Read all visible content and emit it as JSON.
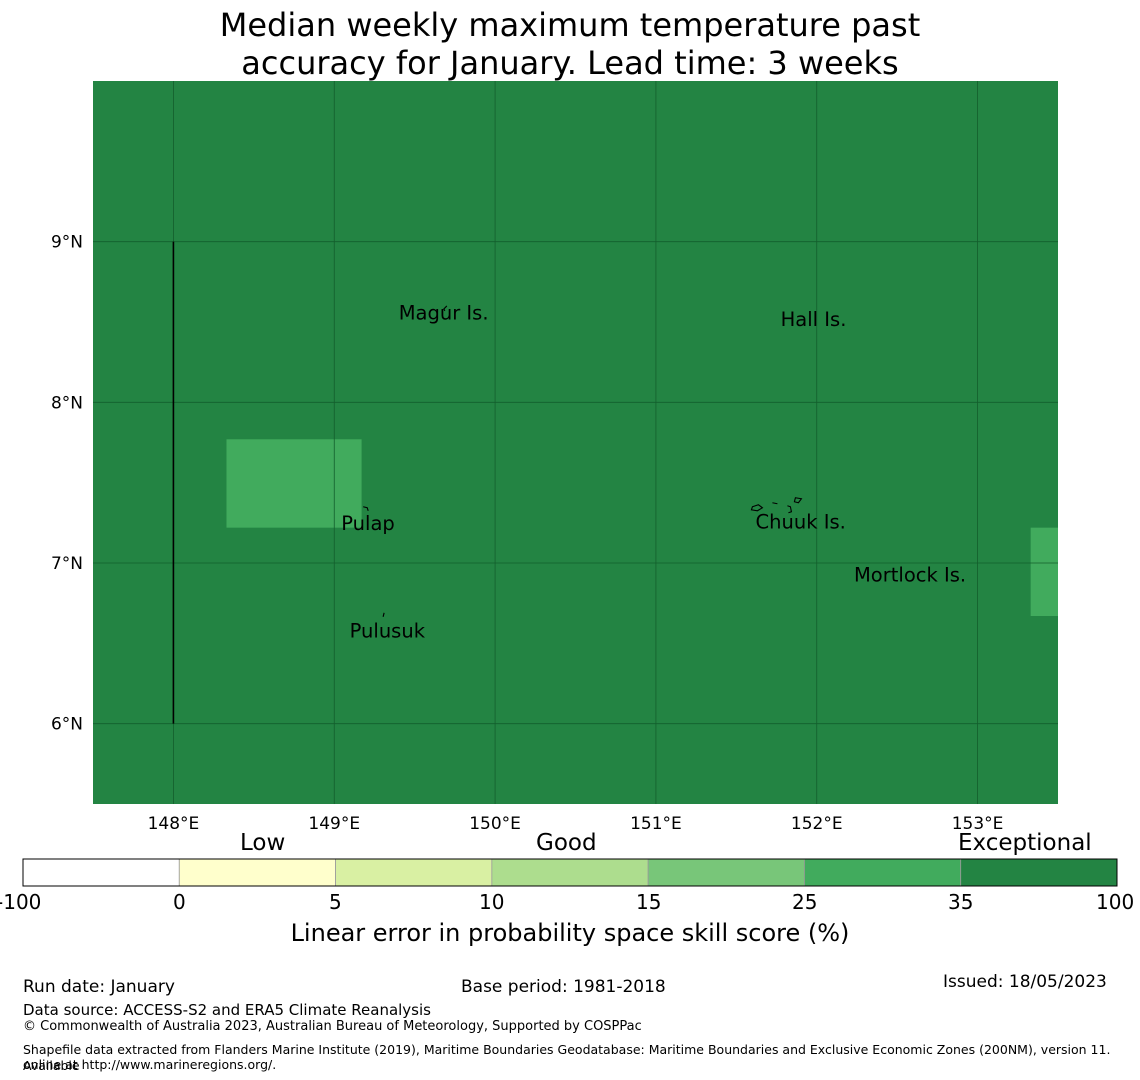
{
  "title": {
    "line1": "Median weekly maximum temperature past",
    "line2": "accuracy for January. Lead time: 3 weeks"
  },
  "chart_data": {
    "type": "heatmap",
    "title": "Median weekly maximum temperature past accuracy for January. Lead time: 3 weeks",
    "x_axis": {
      "range": [
        147.5,
        153.5
      ],
      "ticks": [
        148,
        149,
        150,
        151,
        152,
        153
      ],
      "tick_labels": [
        "148°E",
        "149°E",
        "150°E",
        "151°E",
        "152°E",
        "153°E"
      ]
    },
    "y_axis": {
      "range": [
        5.5,
        10.0
      ],
      "ticks": [
        6,
        7,
        8,
        9
      ],
      "tick_labels": [
        "6°N",
        "7°N",
        "8°N",
        "9°N"
      ]
    },
    "grid": true,
    "background_class": "35 to 100",
    "cells": [
      {
        "lon_min": 148.33,
        "lon_max": 149.17,
        "lat_min": 7.22,
        "lat_max": 7.77,
        "class": "25 to 35"
      },
      {
        "lon_min": 153.33,
        "lon_max": 153.5,
        "lat_min": 6.67,
        "lat_max": 7.22,
        "class": "25 to 35"
      }
    ],
    "boundary_line": {
      "lon": 148.0,
      "lat_min": 6.0,
      "lat_max": 9.0
    },
    "places": [
      {
        "name": "Magur Is.",
        "lon": 149.68,
        "lat": 8.55
      },
      {
        "name": "Hall Is.",
        "lon": 151.98,
        "lat": 8.51
      },
      {
        "name": "Pulap",
        "lon": 149.21,
        "lat": 7.24
      },
      {
        "name": "Chuuk Is.",
        "lon": 151.9,
        "lat": 7.25
      },
      {
        "name": "Mortlock Is.",
        "lon": 152.58,
        "lat": 6.92
      },
      {
        "name": "Pulusuk",
        "lon": 149.33,
        "lat": 6.57
      }
    ],
    "colorbar": {
      "label": "Linear error in probability space skill score (%)",
      "category_labels": [
        "Low",
        "Good",
        "Exceptional"
      ],
      "bounds": [
        "-100",
        "0",
        "5",
        "10",
        "15",
        "25",
        "35",
        "100"
      ],
      "colors": [
        "#ffffff",
        "#ffffcc",
        "#d9f0a3",
        "#addd8e",
        "#78c679",
        "#41ab5d",
        "#238443"
      ]
    },
    "colors": {
      "35 to 100": "#238443",
      "25 to 35": "#41ab5d",
      "grid": "#135e2c",
      "boundary": "#000000"
    }
  },
  "footer": {
    "run_date": "Run date: January",
    "base_period": "Base period: 1981-2018",
    "issued": "Issued: 18/05/2023",
    "data_source": "Data source: ACCESS-S2 and ERA5 Climate Reanalysis",
    "copyright": "© Commonwealth of Australia 2023, Australian Bureau of Meteorology, Supported by COSPPac",
    "shapefile_line1": "Shapefile data extracted from Flanders Marine Institute (2019), Maritime Boundaries Geodatabase: Maritime Boundaries and Exclusive Economic Zones (200NM), version 11. Available",
    "shapefile_line2": "online at http://www.marineregions.org/."
  }
}
